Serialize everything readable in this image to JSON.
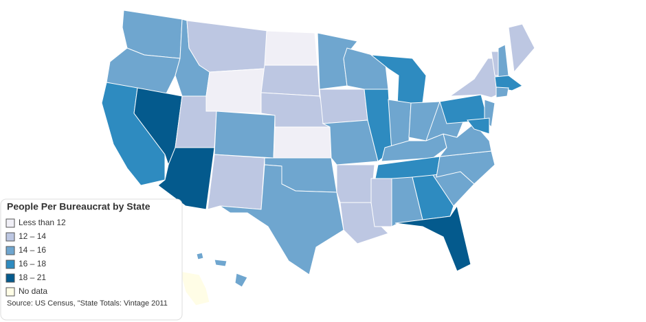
{
  "legend": {
    "title": "People Per Bureaucrat by State",
    "items": [
      {
        "label": "Less than 12",
        "color": "#f0eff6"
      },
      {
        "label": "12 – 14",
        "color": "#bdc7e2"
      },
      {
        "label": "14 – 16",
        "color": "#6fa6cf"
      },
      {
        "label": "16 – 18",
        "color": "#2e8bc0"
      },
      {
        "label": "18 – 21",
        "color": "#045a8d"
      },
      {
        "label": "No data",
        "color": "#fffde6"
      }
    ],
    "source": "Source: US Census, \"State Totals: Vintage 2011"
  }
}
